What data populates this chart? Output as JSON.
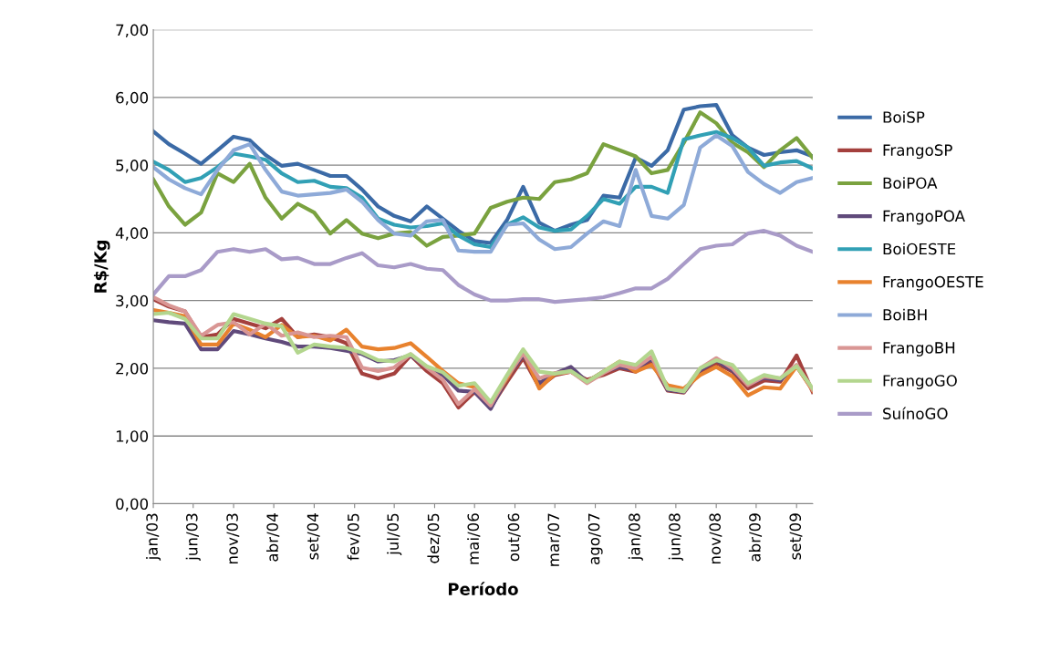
{
  "chart_data": {
    "type": "line",
    "xlabel": "Período",
    "ylabel": "R$/Kg",
    "x": [
      "2003-01",
      "2003-03",
      "2003-05",
      "2003-07",
      "2003-09",
      "2003-11",
      "2004-01",
      "2004-03",
      "2004-05",
      "2004-07",
      "2004-09",
      "2004-11",
      "2005-01",
      "2005-03",
      "2005-05",
      "2005-07",
      "2005-09",
      "2005-11",
      "2006-01",
      "2006-03",
      "2006-05",
      "2006-07",
      "2006-09",
      "2006-11",
      "2007-01",
      "2007-03",
      "2007-05",
      "2007-07",
      "2007-09",
      "2007-11",
      "2008-01",
      "2008-03",
      "2008-05",
      "2008-07",
      "2008-09",
      "2008-11",
      "2009-01",
      "2009-03",
      "2009-05",
      "2009-07",
      "2009-09",
      "2009-11"
    ],
    "series": [
      {
        "name": "BoiSP",
        "color": "#3b6aa6",
        "values": [
          5.5,
          5.31,
          5.17,
          5.02,
          5.22,
          5.42,
          5.37,
          5.15,
          4.99,
          5.02,
          4.93,
          4.84,
          4.84,
          4.64,
          4.39,
          4.25,
          4.17,
          4.39,
          4.21,
          4.03,
          3.88,
          3.85,
          4.19,
          4.68,
          4.15,
          4.03,
          4.12,
          4.19,
          4.55,
          4.52,
          5.11,
          4.99,
          5.22,
          5.82,
          5.87,
          5.89,
          5.44,
          5.26,
          5.15,
          5.19,
          5.22,
          5.13
        ]
      },
      {
        "name": "FrangoSP",
        "color": "#a4403d",
        "values": [
          3.02,
          2.91,
          2.84,
          2.46,
          2.5,
          2.73,
          2.66,
          2.59,
          2.73,
          2.46,
          2.5,
          2.46,
          2.37,
          1.92,
          1.85,
          1.92,
          2.19,
          1.96,
          1.78,
          1.42,
          1.65,
          1.42,
          1.8,
          2.15,
          1.72,
          1.9,
          1.95,
          1.83,
          1.9,
          2.0,
          1.95,
          2.1,
          1.67,
          1.64,
          1.95,
          2.08,
          1.95,
          1.7,
          1.82,
          1.8,
          2.19,
          1.65
        ]
      },
      {
        "name": "BoiPOA",
        "color": "#7aa23f",
        "values": [
          4.79,
          4.39,
          4.12,
          4.3,
          4.88,
          4.75,
          5.02,
          4.52,
          4.21,
          4.43,
          4.3,
          3.99,
          4.19,
          3.99,
          3.92,
          3.99,
          4.01,
          3.81,
          3.94,
          3.96,
          3.99,
          4.37,
          4.46,
          4.52,
          4.5,
          4.75,
          4.79,
          4.88,
          5.31,
          5.22,
          5.13,
          4.88,
          4.93,
          5.33,
          5.78,
          5.62,
          5.33,
          5.19,
          4.97,
          5.22,
          5.4,
          5.11
        ]
      },
      {
        "name": "FrangoPOA",
        "color": "#604a7b",
        "values": [
          2.71,
          2.68,
          2.66,
          2.28,
          2.28,
          2.55,
          2.5,
          2.44,
          2.39,
          2.32,
          2.32,
          2.3,
          2.26,
          2.21,
          2.1,
          2.12,
          2.19,
          2.01,
          1.9,
          1.67,
          1.65,
          1.4,
          1.85,
          2.2,
          1.78,
          1.92,
          2.02,
          1.8,
          1.95,
          2.02,
          1.97,
          2.15,
          1.68,
          1.65,
          1.97,
          2.12,
          1.97,
          1.76,
          1.86,
          1.82,
          2.03,
          1.68
        ]
      },
      {
        "name": "BoiOESTE",
        "color": "#31a0b5",
        "values": [
          5.05,
          4.93,
          4.75,
          4.81,
          4.97,
          5.17,
          5.13,
          5.08,
          4.88,
          4.75,
          4.77,
          4.68,
          4.66,
          4.52,
          4.21,
          4.12,
          4.08,
          4.1,
          4.14,
          3.96,
          3.83,
          3.79,
          4.12,
          4.23,
          4.08,
          4.03,
          4.05,
          4.25,
          4.5,
          4.43,
          4.68,
          4.68,
          4.59,
          5.38,
          5.44,
          5.49,
          5.4,
          5.26,
          4.99,
          5.04,
          5.06,
          4.95
        ]
      },
      {
        "name": "FrangoOESTE",
        "color": "#e8822e",
        "values": [
          2.86,
          2.82,
          2.77,
          2.35,
          2.35,
          2.66,
          2.57,
          2.46,
          2.64,
          2.46,
          2.48,
          2.41,
          2.57,
          2.32,
          2.28,
          2.3,
          2.37,
          2.17,
          1.96,
          1.78,
          1.72,
          1.48,
          1.85,
          2.25,
          1.7,
          1.92,
          1.95,
          1.8,
          1.95,
          2.1,
          1.95,
          2.05,
          1.75,
          1.7,
          1.9,
          2.02,
          1.88,
          1.6,
          1.72,
          1.7,
          2.03,
          1.67
        ]
      },
      {
        "name": "BoiBH",
        "color": "#8eaad8",
        "values": [
          4.97,
          4.79,
          4.66,
          4.57,
          4.93,
          5.22,
          5.31,
          4.93,
          4.61,
          4.55,
          4.57,
          4.59,
          4.64,
          4.46,
          4.19,
          3.99,
          3.96,
          4.17,
          4.19,
          3.74,
          3.72,
          3.72,
          4.12,
          4.14,
          3.9,
          3.76,
          3.79,
          3.99,
          4.17,
          4.1,
          4.93,
          4.25,
          4.21,
          4.41,
          5.26,
          5.44,
          5.28,
          4.9,
          4.72,
          4.59,
          4.75,
          4.81
        ]
      },
      {
        "name": "FrangoBH",
        "color": "#d99694",
        "values": [
          3.05,
          2.93,
          2.84,
          2.48,
          2.64,
          2.68,
          2.5,
          2.66,
          2.48,
          2.53,
          2.46,
          2.48,
          2.46,
          2.01,
          1.96,
          2.01,
          2.21,
          2.01,
          1.83,
          1.47,
          1.69,
          1.45,
          1.88,
          2.22,
          1.85,
          1.93,
          1.95,
          1.78,
          1.93,
          2.05,
          2.0,
          2.17,
          1.7,
          1.66,
          2.0,
          2.15,
          2.0,
          1.75,
          1.88,
          1.85,
          2.05,
          1.68
        ]
      },
      {
        "name": "FrangoGO",
        "color": "#b3d68e",
        "values": [
          2.8,
          2.82,
          2.73,
          2.44,
          2.44,
          2.8,
          2.73,
          2.66,
          2.62,
          2.23,
          2.35,
          2.32,
          2.3,
          2.23,
          2.12,
          2.1,
          2.21,
          2.03,
          1.94,
          1.74,
          1.78,
          1.5,
          1.9,
          2.28,
          1.95,
          1.92,
          1.96,
          1.8,
          1.95,
          2.1,
          2.05,
          2.25,
          1.7,
          1.66,
          2.0,
          2.12,
          2.05,
          1.78,
          1.9,
          1.85,
          2.03,
          1.7
        ]
      },
      {
        "name": "SuínoGO",
        "color": "#a99bc8",
        "values": [
          3.09,
          3.36,
          3.36,
          3.45,
          3.72,
          3.76,
          3.72,
          3.76,
          3.61,
          3.63,
          3.54,
          3.54,
          3.63,
          3.7,
          3.52,
          3.49,
          3.54,
          3.47,
          3.45,
          3.23,
          3.09,
          3.0,
          3.0,
          3.02,
          3.02,
          2.98,
          3.0,
          3.02,
          3.05,
          3.11,
          3.18,
          3.18,
          3.32,
          3.54,
          3.76,
          3.81,
          3.83,
          3.99,
          4.03,
          3.96,
          3.81,
          3.72
        ]
      }
    ],
    "xlim": [
      "2003-01",
      "2009-11"
    ],
    "xticks": [
      {
        "value": "2003-01",
        "label": "jan/03"
      },
      {
        "value": "2003-06",
        "label": "jun/03"
      },
      {
        "value": "2003-11",
        "label": "nov/03"
      },
      {
        "value": "2004-04",
        "label": "abr/04"
      },
      {
        "value": "2004-09",
        "label": "set/04"
      },
      {
        "value": "2005-02",
        "label": "fev/05"
      },
      {
        "value": "2005-07",
        "label": "jul/05"
      },
      {
        "value": "2005-12",
        "label": "dez/05"
      },
      {
        "value": "2006-05",
        "label": "mai/06"
      },
      {
        "value": "2006-10",
        "label": "out/06"
      },
      {
        "value": "2007-03",
        "label": "mar/07"
      },
      {
        "value": "2007-08",
        "label": "ago/07"
      },
      {
        "value": "2008-01",
        "label": "jan/08"
      },
      {
        "value": "2008-06",
        "label": "jun/08"
      },
      {
        "value": "2008-11",
        "label": "nov/08"
      },
      {
        "value": "2009-04",
        "label": "abr/09"
      },
      {
        "value": "2009-09",
        "label": "set/09"
      }
    ],
    "ylim": [
      0,
      7
    ],
    "yticks": [
      {
        "value": 0,
        "label": "0,00"
      },
      {
        "value": 1,
        "label": "1,00"
      },
      {
        "value": 2,
        "label": "2,00"
      },
      {
        "value": 3,
        "label": "3,00"
      },
      {
        "value": 4,
        "label": "4,00"
      },
      {
        "value": 5,
        "label": "5,00"
      },
      {
        "value": 6,
        "label": "6,00"
      },
      {
        "value": 7,
        "label": "7,00"
      }
    ],
    "grid": "y",
    "legend": "right",
    "marker": "none",
    "line_style": "solid"
  }
}
